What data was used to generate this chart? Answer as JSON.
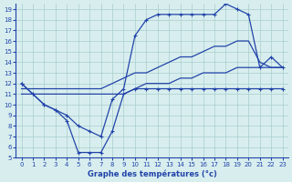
{
  "x": [
    0,
    1,
    2,
    3,
    4,
    5,
    6,
    7,
    8,
    9,
    10,
    11,
    12,
    13,
    14,
    15,
    16,
    17,
    18,
    19,
    20,
    21,
    22,
    23
  ],
  "line_max": [
    12.0,
    11.0,
    10.0,
    9.5,
    9.0,
    8.0,
    7.5,
    7.0,
    10.5,
    11.5,
    16.5,
    18.0,
    18.5,
    18.5,
    18.5,
    18.5,
    18.5,
    18.5,
    19.5,
    19.0,
    18.5,
    13.5,
    14.5,
    13.5
  ],
  "line_avg": [
    11.5,
    11.5,
    11.5,
    11.5,
    11.5,
    11.5,
    11.5,
    11.5,
    12.0,
    12.5,
    13.0,
    13.0,
    13.5,
    14.0,
    14.5,
    14.5,
    15.0,
    15.5,
    15.5,
    16.0,
    16.0,
    14.0,
    13.5,
    13.5
  ],
  "line_avg2": [
    11.0,
    11.0,
    11.0,
    11.0,
    11.0,
    11.0,
    11.0,
    11.0,
    11.0,
    11.0,
    11.5,
    12.0,
    12.0,
    12.0,
    12.5,
    12.5,
    13.0,
    13.0,
    13.0,
    13.5,
    13.5,
    13.5,
    13.5,
    13.5
  ],
  "line_min": [
    12.0,
    11.0,
    10.0,
    9.5,
    8.5,
    5.5,
    5.5,
    5.5,
    7.5,
    11.0,
    11.5,
    11.5,
    11.5,
    11.5,
    11.5,
    11.5,
    11.5,
    11.5,
    11.5,
    11.5,
    11.5,
    11.5,
    11.5,
    11.5
  ],
  "bg_color": "#d8eeee",
  "grid_color": "#aacccc",
  "line_color": "#2244aa",
  "xlabel": "Graphe des températures (°c)",
  "ylim": [
    5,
    19.5
  ],
  "xlim": [
    -0.5,
    23.5
  ],
  "yticks": [
    5,
    6,
    7,
    8,
    9,
    10,
    11,
    12,
    13,
    14,
    15,
    16,
    17,
    18,
    19
  ],
  "xticks": [
    0,
    1,
    2,
    3,
    4,
    5,
    6,
    7,
    8,
    9,
    10,
    11,
    12,
    13,
    14,
    15,
    16,
    17,
    18,
    19,
    20,
    21,
    22,
    23
  ]
}
